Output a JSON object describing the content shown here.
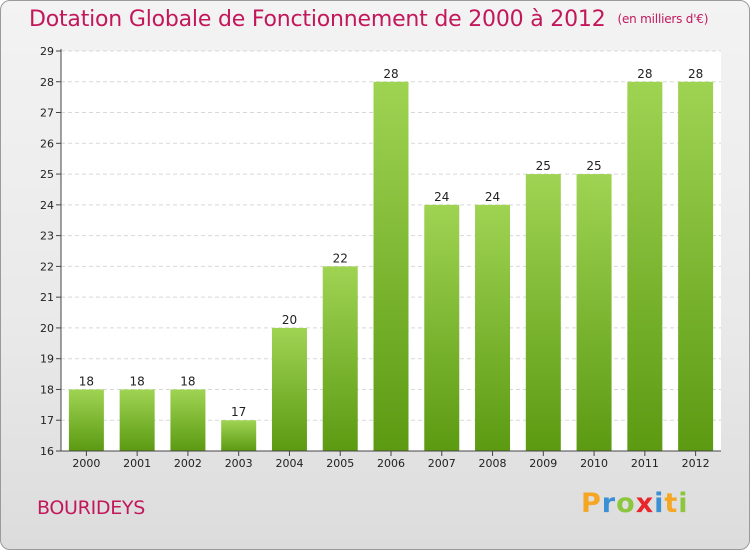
{
  "header": {
    "title": "Dotation Globale de Fonctionnement de 2000 à 2012",
    "unit": "(en milliers d'€)"
  },
  "footer": {
    "commune": "BOURIDEYS",
    "logo_letters": [
      {
        "char": "P",
        "color": "#f5a623"
      },
      {
        "char": "r",
        "color": "#3b8fd4"
      },
      {
        "char": "o",
        "color": "#8cc63f"
      },
      {
        "char": "x",
        "color": "#e8262c"
      },
      {
        "char": "i",
        "color": "#3b8fd4"
      },
      {
        "char": "t",
        "color": "#f5a623"
      },
      {
        "char": "i",
        "color": "#8cc63f"
      }
    ]
  },
  "colors": {
    "bar_top": "#9fd453",
    "bar_bottom": "#5c9a12",
    "accent": "#c2185b"
  },
  "chart_data": {
    "type": "bar",
    "title": "Dotation Globale de Fonctionnement de 2000 à 2012",
    "subtitle": "(en milliers d'€)",
    "categories": [
      "2000",
      "2001",
      "2002",
      "2003",
      "2004",
      "2005",
      "2006",
      "2007",
      "2008",
      "2009",
      "2010",
      "2011",
      "2012"
    ],
    "values": [
      18,
      18,
      18,
      17,
      20,
      22,
      28,
      24,
      24,
      25,
      25,
      28,
      28
    ],
    "ylim": [
      16,
      29
    ],
    "yticks": [
      16,
      17,
      18,
      19,
      20,
      21,
      22,
      23,
      24,
      25,
      26,
      27,
      28,
      29
    ],
    "grid": true
  }
}
